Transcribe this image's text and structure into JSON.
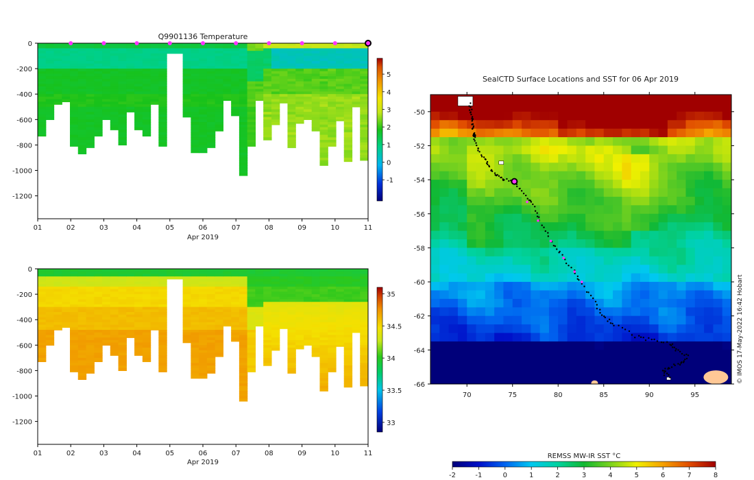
{
  "colors": {
    "temp_scale": [
      "#000a8a",
      "#0028c8",
      "#0070e6",
      "#00b0f0",
      "#00d8c8",
      "#00cc66",
      "#10c010",
      "#3ad21a",
      "#c8e81a",
      "#f0f000",
      "#f8c800",
      "#f09800",
      "#e06800",
      "#c83000",
      "#a00000"
    ],
    "marker": "#ff33ff",
    "land": "#ffc896"
  },
  "chart_data": [
    {
      "type": "heatmap",
      "id": "temperature",
      "title": "Q9901136  Temperature",
      "xlabel": "Apr 2019",
      "x_ticks": [
        "01",
        "02",
        "03",
        "04",
        "05",
        "06",
        "07",
        "08",
        "09",
        "10",
        "11"
      ],
      "x_range": [
        1,
        11
      ],
      "y_ticks": [
        "0",
        "-200",
        "-400",
        "-600",
        "-800",
        "-1000",
        "-1200"
      ],
      "y_range": [
        -1380,
        0
      ],
      "colorbar": {
        "min": -2.2,
        "max": 5.9,
        "ticks": [
          "5",
          "4",
          "3",
          "2",
          "1",
          "0",
          "-1"
        ]
      },
      "profile_markers_days": [
        2,
        3,
        4,
        5,
        6,
        7,
        8,
        9,
        10,
        11
      ],
      "profile_max_depths_m": [
        -730,
        -600,
        -480,
        -460,
        -810,
        -870,
        -820,
        -730,
        -600,
        -680,
        -800,
        -540,
        -680,
        -730,
        -480,
        -810,
        -870,
        -810,
        -580,
        -860,
        -860,
        -820,
        -690,
        -450,
        -570,
        -1040,
        -810,
        -450,
        -760,
        -640,
        -470,
        -820,
        -630,
        -600,
        -690,
        -960,
        -810,
        -610,
        -930,
        -500,
        -920
      ],
      "profile_gaps_day": [
        [
          3.0,
          3.1
        ],
        [
          4.9,
          5.0
        ],
        [
          5.1,
          5.2
        ]
      ]
    },
    {
      "type": "heatmap",
      "id": "salinity",
      "title": "",
      "xlabel": "Apr 2019",
      "x_ticks": [
        "01",
        "02",
        "03",
        "04",
        "05",
        "06",
        "07",
        "08",
        "09",
        "10",
        "11"
      ],
      "x_range": [
        1,
        11
      ],
      "y_ticks": [
        "0",
        "-200",
        "-400",
        "-600",
        "-800",
        "-1000",
        "-1200"
      ],
      "y_range": [
        -1380,
        0
      ],
      "colorbar": {
        "min": 32.85,
        "max": 35.1,
        "ticks": [
          "35",
          "34.5",
          "34",
          "33.5",
          "33"
        ]
      }
    },
    {
      "type": "heatmap",
      "id": "sst-map",
      "title": "SealCTD Surface Locations and SST for 06 Apr 2019",
      "x_ticks": [
        "70",
        "75",
        "80",
        "85",
        "90",
        "95"
      ],
      "x_range": [
        66,
        99
      ],
      "y_ticks": [
        "-50",
        "-52",
        "-54",
        "-56",
        "-58",
        "-60",
        "-62",
        "-64",
        "-66"
      ],
      "y_range": [
        -66,
        -49
      ],
      "colorbar": {
        "label": "REMSS MW-IR SST °C",
        "min": -2,
        "max": 8,
        "ticks": [
          "-2",
          "-1",
          "0",
          "1",
          "2",
          "3",
          "4",
          "5",
          "6",
          "7",
          "8"
        ]
      },
      "track_lonlat": [
        [
          70.3,
          -49.6
        ],
        [
          70.5,
          -50.1
        ],
        [
          70.6,
          -50.6
        ],
        [
          70.7,
          -51.0
        ],
        [
          70.8,
          -51.5
        ],
        [
          71.2,
          -52.2
        ],
        [
          71.9,
          -52.8
        ],
        [
          72.5,
          -53.3
        ],
        [
          73.2,
          -53.7
        ],
        [
          74.0,
          -54.0
        ],
        [
          75.2,
          -54.1
        ],
        [
          76.3,
          -54.8
        ],
        [
          77.2,
          -55.5
        ],
        [
          78.0,
          -56.4
        ],
        [
          79.2,
          -57.6
        ],
        [
          80.2,
          -58.3
        ],
        [
          81.8,
          -59.4
        ],
        [
          82.6,
          -60.2
        ],
        [
          84.0,
          -61.2
        ],
        [
          85.0,
          -62.1
        ],
        [
          86.2,
          -62.5
        ],
        [
          88.5,
          -63.2
        ],
        [
          90.3,
          -63.4
        ],
        [
          92.3,
          -63.6
        ],
        [
          93.0,
          -64.0
        ],
        [
          94.2,
          -64.4
        ],
        [
          93.5,
          -64.8
        ],
        [
          92.2,
          -65.0
        ],
        [
          91.4,
          -65.3
        ],
        [
          92.4,
          -65.6
        ]
      ],
      "current_position": [
        75.2,
        -54.1
      ],
      "day_markers_lonlat": [
        [
          76.6,
          -55.3
        ],
        [
          77.8,
          -56.4
        ],
        [
          79.2,
          -57.6
        ],
        [
          80.6,
          -58.6
        ],
        [
          81.8,
          -59.4
        ],
        [
          82.6,
          -60.0
        ]
      ]
    }
  ],
  "watermark": "© IMOS 17-May-2022 16:42 Hobart"
}
